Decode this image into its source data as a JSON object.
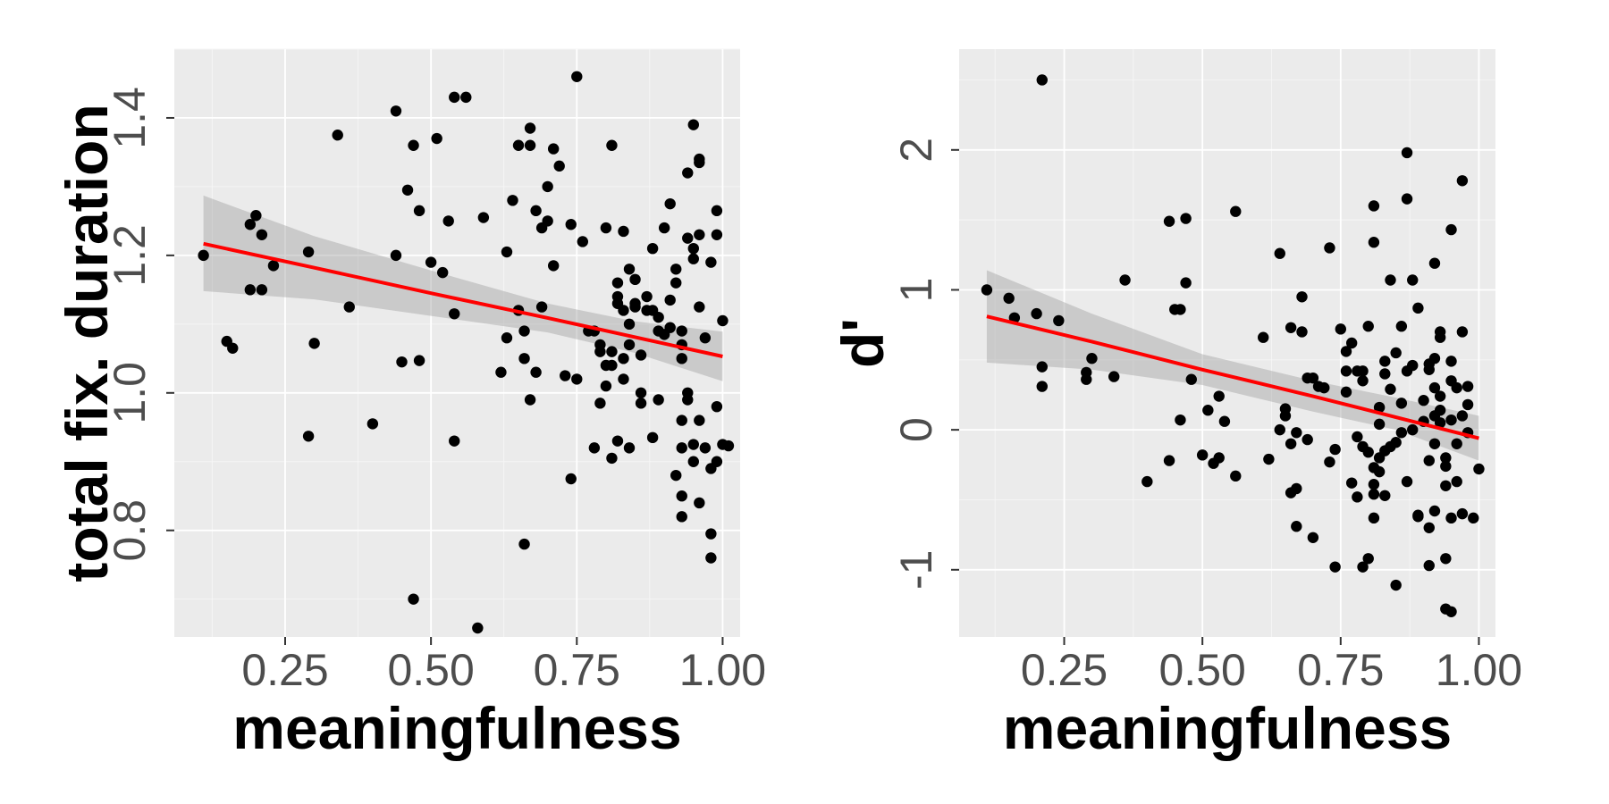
{
  "chart_data": [
    {
      "type": "scatter",
      "title": "",
      "xlabel": "meaningfulness",
      "ylabel": "total fix. duration",
      "xlim": [
        0.06,
        1.03
      ],
      "ylim": [
        0.645,
        1.5
      ],
      "x_ticks": [
        0.25,
        0.5,
        0.75,
        1.0
      ],
      "x_tick_labels": [
        "0.25",
        "0.50",
        "0.75",
        "1.00"
      ],
      "y_ticks": [
        0.8,
        1.0,
        1.2,
        1.4
      ],
      "y_tick_labels": [
        "0.8",
        "1.0",
        "1.2",
        "1.4"
      ],
      "grid": true,
      "points": [
        [
          0.11,
          1.2
        ],
        [
          0.15,
          1.075
        ],
        [
          0.16,
          1.065
        ],
        [
          0.19,
          1.245
        ],
        [
          0.2,
          1.258
        ],
        [
          0.21,
          1.23
        ],
        [
          0.19,
          1.15
        ],
        [
          0.21,
          1.15
        ],
        [
          0.23,
          1.185
        ],
        [
          0.29,
          0.937
        ],
        [
          0.3,
          1.072
        ],
        [
          0.29,
          1.205
        ],
        [
          0.34,
          1.375
        ],
        [
          0.36,
          1.125
        ],
        [
          0.4,
          0.955
        ],
        [
          0.44,
          1.41
        ],
        [
          0.44,
          1.2
        ],
        [
          0.45,
          1.045
        ],
        [
          0.46,
          1.295
        ],
        [
          0.47,
          1.36
        ],
        [
          0.48,
          1.265
        ],
        [
          0.48,
          1.047
        ],
        [
          0.47,
          0.7
        ],
        [
          0.5,
          1.19
        ],
        [
          0.51,
          1.37
        ],
        [
          0.52,
          1.175
        ],
        [
          0.53,
          1.25
        ],
        [
          0.54,
          1.43
        ],
        [
          0.54,
          1.115
        ],
        [
          0.54,
          0.93
        ],
        [
          0.56,
          1.43
        ],
        [
          0.58,
          0.658
        ],
        [
          0.59,
          1.255
        ],
        [
          0.62,
          1.03
        ],
        [
          0.63,
          1.205
        ],
        [
          0.63,
          1.08
        ],
        [
          0.64,
          1.28
        ],
        [
          0.65,
          1.12
        ],
        [
          0.65,
          1.36
        ],
        [
          0.66,
          1.05
        ],
        [
          0.66,
          1.09
        ],
        [
          0.67,
          1.385
        ],
        [
          0.67,
          1.36
        ],
        [
          0.67,
          0.99
        ],
        [
          0.66,
          0.78
        ],
        [
          0.68,
          1.265
        ],
        [
          0.68,
          1.03
        ],
        [
          0.69,
          1.24
        ],
        [
          0.69,
          1.125
        ],
        [
          0.7,
          1.25
        ],
        [
          0.7,
          1.3
        ],
        [
          0.71,
          1.355
        ],
        [
          0.72,
          1.33
        ],
        [
          0.71,
          1.185
        ],
        [
          0.73,
          1.025
        ],
        [
          0.74,
          0.875
        ],
        [
          0.74,
          1.245
        ],
        [
          0.75,
          1.02
        ],
        [
          0.75,
          1.46
        ],
        [
          0.76,
          1.22
        ],
        [
          0.77,
          1.09
        ],
        [
          0.78,
          1.09
        ],
        [
          0.78,
          0.92
        ],
        [
          0.79,
          1.07
        ],
        [
          0.79,
          0.985
        ],
        [
          0.79,
          1.06
        ],
        [
          0.8,
          1.04
        ],
        [
          0.8,
          1.01
        ],
        [
          0.8,
          1.24
        ],
        [
          0.81,
          1.06
        ],
        [
          0.81,
          1.04
        ],
        [
          0.81,
          1.36
        ],
        [
          0.81,
          0.905
        ],
        [
          0.82,
          1.16
        ],
        [
          0.82,
          1.13
        ],
        [
          0.82,
          0.93
        ],
        [
          0.82,
          1.14
        ],
        [
          0.83,
          1.235
        ],
        [
          0.83,
          1.12
        ],
        [
          0.83,
          1.05
        ],
        [
          0.83,
          1.02
        ],
        [
          0.84,
          1.07
        ],
        [
          0.84,
          1.1
        ],
        [
          0.84,
          1.18
        ],
        [
          0.84,
          0.92
        ],
        [
          0.85,
          1.165
        ],
        [
          0.85,
          1.125
        ],
        [
          0.85,
          1.13
        ],
        [
          0.86,
          1.055
        ],
        [
          0.86,
          0.985
        ],
        [
          0.86,
          1.0
        ],
        [
          0.87,
          1.14
        ],
        [
          0.87,
          1.12
        ],
        [
          0.88,
          1.21
        ],
        [
          0.88,
          1.12
        ],
        [
          0.88,
          0.935
        ],
        [
          0.89,
          1.09
        ],
        [
          0.89,
          1.11
        ],
        [
          0.89,
          0.99
        ],
        [
          0.9,
          1.24
        ],
        [
          0.9,
          1.085
        ],
        [
          0.91,
          1.275
        ],
        [
          0.91,
          1.095
        ],
        [
          0.91,
          1.135
        ],
        [
          0.92,
          0.88
        ],
        [
          0.92,
          1.18
        ],
        [
          0.92,
          1.16
        ],
        [
          0.93,
          1.05
        ],
        [
          0.93,
          1.09
        ],
        [
          0.93,
          1.07
        ],
        [
          0.93,
          0.96
        ],
        [
          0.93,
          0.85
        ],
        [
          0.93,
          0.92
        ],
        [
          0.93,
          0.82
        ],
        [
          0.94,
          1.225
        ],
        [
          0.94,
          1.32
        ],
        [
          0.94,
          0.99
        ],
        [
          0.94,
          1.0
        ],
        [
          0.95,
          0.9
        ],
        [
          0.95,
          0.925
        ],
        [
          0.95,
          1.39
        ],
        [
          0.95,
          1.195
        ],
        [
          0.95,
          1.21
        ],
        [
          0.96,
          1.335
        ],
        [
          0.96,
          1.34
        ],
        [
          0.96,
          1.23
        ],
        [
          0.96,
          1.125
        ],
        [
          0.96,
          0.96
        ],
        [
          0.96,
          0.84
        ],
        [
          0.97,
          1.08
        ],
        [
          0.97,
          0.92
        ],
        [
          0.98,
          1.19
        ],
        [
          0.98,
          0.89
        ],
        [
          0.98,
          0.76
        ],
        [
          0.98,
          0.795
        ],
        [
          0.99,
          1.265
        ],
        [
          0.99,
          1.23
        ],
        [
          0.99,
          0.98
        ],
        [
          0.99,
          0.9
        ],
        [
          1.0,
          1.105
        ],
        [
          1.0,
          0.925
        ],
        [
          1.01,
          0.923
        ]
      ],
      "fit": {
        "x": [
          0.11,
          0.3,
          0.5,
          0.7,
          0.85,
          1.0
        ],
        "y": [
          1.217,
          1.182,
          1.145,
          1.109,
          1.081,
          1.053
        ],
        "lower": [
          1.148,
          1.136,
          1.112,
          1.088,
          1.058,
          1.017
        ],
        "upper": [
          1.287,
          1.228,
          1.178,
          1.13,
          1.104,
          1.089
        ]
      }
    },
    {
      "type": "scatter",
      "title": "",
      "xlabel": "meaningfulness",
      "ylabel": "d'",
      "xlim": [
        0.06,
        1.03
      ],
      "ylim": [
        -1.48,
        2.72
      ],
      "x_ticks": [
        0.25,
        0.5,
        0.75,
        1.0
      ],
      "x_tick_labels": [
        "0.25",
        "0.50",
        "0.75",
        "1.00"
      ],
      "y_ticks": [
        -1,
        0,
        1,
        2
      ],
      "y_tick_labels": [
        "-1",
        "0",
        "1",
        "2"
      ],
      "grid": true,
      "points": [
        [
          0.11,
          1.0
        ],
        [
          0.15,
          0.94
        ],
        [
          0.16,
          0.8
        ],
        [
          0.2,
          0.83
        ],
        [
          0.21,
          2.5
        ],
        [
          0.21,
          0.45
        ],
        [
          0.21,
          0.31
        ],
        [
          0.24,
          0.78
        ],
        [
          0.29,
          0.36
        ],
        [
          0.29,
          0.41
        ],
        [
          0.3,
          0.51
        ],
        [
          0.34,
          0.38
        ],
        [
          0.36,
          1.07
        ],
        [
          0.4,
          -0.37
        ],
        [
          0.44,
          1.49
        ],
        [
          0.44,
          -0.22
        ],
        [
          0.45,
          0.86
        ],
        [
          0.46,
          0.86
        ],
        [
          0.46,
          0.07
        ],
        [
          0.47,
          1.51
        ],
        [
          0.47,
          1.05
        ],
        [
          0.48,
          0.36
        ],
        [
          0.5,
          -0.18
        ],
        [
          0.51,
          0.14
        ],
        [
          0.52,
          -0.24
        ],
        [
          0.53,
          0.24
        ],
        [
          0.54,
          0.06
        ],
        [
          0.53,
          -0.2
        ],
        [
          0.56,
          1.56
        ],
        [
          0.56,
          -0.33
        ],
        [
          0.61,
          0.66
        ],
        [
          0.62,
          -0.21
        ],
        [
          0.64,
          0.0
        ],
        [
          0.64,
          1.26
        ],
        [
          0.65,
          0.15
        ],
        [
          0.65,
          0.1
        ],
        [
          0.66,
          -0.45
        ],
        [
          0.66,
          -0.1
        ],
        [
          0.66,
          0.73
        ],
        [
          0.67,
          -0.42
        ],
        [
          0.67,
          -0.02
        ],
        [
          0.67,
          -0.69
        ],
        [
          0.68,
          0.95
        ],
        [
          0.68,
          0.7
        ],
        [
          0.69,
          0.37
        ],
        [
          0.69,
          -0.07
        ],
        [
          0.7,
          -0.77
        ],
        [
          0.7,
          0.37
        ],
        [
          0.71,
          0.31
        ],
        [
          0.72,
          0.3
        ],
        [
          0.73,
          -0.23
        ],
        [
          0.73,
          1.3
        ],
        [
          0.74,
          -0.14
        ],
        [
          0.74,
          -0.98
        ],
        [
          0.75,
          0.72
        ],
        [
          0.76,
          0.42
        ],
        [
          0.76,
          0.56
        ],
        [
          0.76,
          0.27
        ],
        [
          0.77,
          -0.38
        ],
        [
          0.77,
          0.62
        ],
        [
          0.78,
          0.42
        ],
        [
          0.78,
          -0.48
        ],
        [
          0.78,
          -0.05
        ],
        [
          0.79,
          0.42
        ],
        [
          0.79,
          0.35
        ],
        [
          0.79,
          -0.98
        ],
        [
          0.79,
          -0.12
        ],
        [
          0.8,
          0.74
        ],
        [
          0.8,
          -0.92
        ],
        [
          0.8,
          -0.16
        ],
        [
          0.81,
          1.6
        ],
        [
          0.81,
          1.34
        ],
        [
          0.81,
          -0.27
        ],
        [
          0.81,
          -0.39
        ],
        [
          0.81,
          -0.63
        ],
        [
          0.81,
          -0.46
        ],
        [
          0.82,
          0.04
        ],
        [
          0.82,
          -0.2
        ],
        [
          0.82,
          0.16
        ],
        [
          0.82,
          -0.3
        ],
        [
          0.83,
          0.49
        ],
        [
          0.83,
          -0.15
        ],
        [
          0.83,
          -0.47
        ],
        [
          0.83,
          0.4
        ],
        [
          0.84,
          0.29
        ],
        [
          0.84,
          -0.12
        ],
        [
          0.84,
          1.07
        ],
        [
          0.85,
          -0.09
        ],
        [
          0.85,
          -1.11
        ],
        [
          0.85,
          0.55
        ],
        [
          0.86,
          0.74
        ],
        [
          0.86,
          -0.02
        ],
        [
          0.86,
          0.19
        ],
        [
          0.87,
          1.98
        ],
        [
          0.87,
          1.65
        ],
        [
          0.87,
          0.42
        ],
        [
          0.87,
          -0.37
        ],
        [
          0.88,
          0.0
        ],
        [
          0.88,
          0.46
        ],
        [
          0.88,
          1.07
        ],
        [
          0.89,
          0.87
        ],
        [
          0.89,
          -0.62
        ],
        [
          0.89,
          -0.61
        ],
        [
          0.9,
          0.21
        ],
        [
          0.9,
          0.06
        ],
        [
          0.91,
          0.47
        ],
        [
          0.91,
          -0.97
        ],
        [
          0.91,
          -0.7
        ],
        [
          0.91,
          -0.22
        ],
        [
          0.91,
          0.43
        ],
        [
          0.92,
          1.19
        ],
        [
          0.92,
          0.51
        ],
        [
          0.92,
          0.3
        ],
        [
          0.92,
          -0.58
        ],
        [
          0.92,
          -0.1
        ],
        [
          0.92,
          0.1
        ],
        [
          0.93,
          0.66
        ],
        [
          0.93,
          0.7
        ],
        [
          0.93,
          0.24
        ],
        [
          0.93,
          0.14
        ],
        [
          0.93,
          0.05
        ],
        [
          0.94,
          -0.26
        ],
        [
          0.94,
          -1.28
        ],
        [
          0.94,
          -0.4
        ],
        [
          0.94,
          -0.92
        ],
        [
          0.94,
          -0.2
        ],
        [
          0.95,
          1.43
        ],
        [
          0.95,
          0.35
        ],
        [
          0.95,
          -1.3
        ],
        [
          0.95,
          0.07
        ],
        [
          0.95,
          -0.63
        ],
        [
          0.95,
          0.49
        ],
        [
          0.96,
          0.3
        ],
        [
          0.96,
          -0.1
        ],
        [
          0.96,
          -0.37
        ],
        [
          0.97,
          1.78
        ],
        [
          0.97,
          0.1
        ],
        [
          0.97,
          -0.6
        ],
        [
          0.97,
          0.7
        ],
        [
          0.98,
          0.18
        ],
        [
          0.98,
          0.31
        ],
        [
          0.98,
          -0.02
        ],
        [
          0.99,
          -0.63
        ],
        [
          1.0,
          -0.28
        ]
      ],
      "fit": {
        "x": [
          0.11,
          0.3,
          0.5,
          0.7,
          0.85,
          1.0
        ],
        "y": [
          0.81,
          0.63,
          0.43,
          0.24,
          0.09,
          -0.06
        ],
        "lower": [
          0.48,
          0.43,
          0.32,
          0.13,
          0.0,
          -0.22
        ],
        "upper": [
          1.14,
          0.83,
          0.54,
          0.35,
          0.23,
          0.1
        ]
      }
    }
  ]
}
